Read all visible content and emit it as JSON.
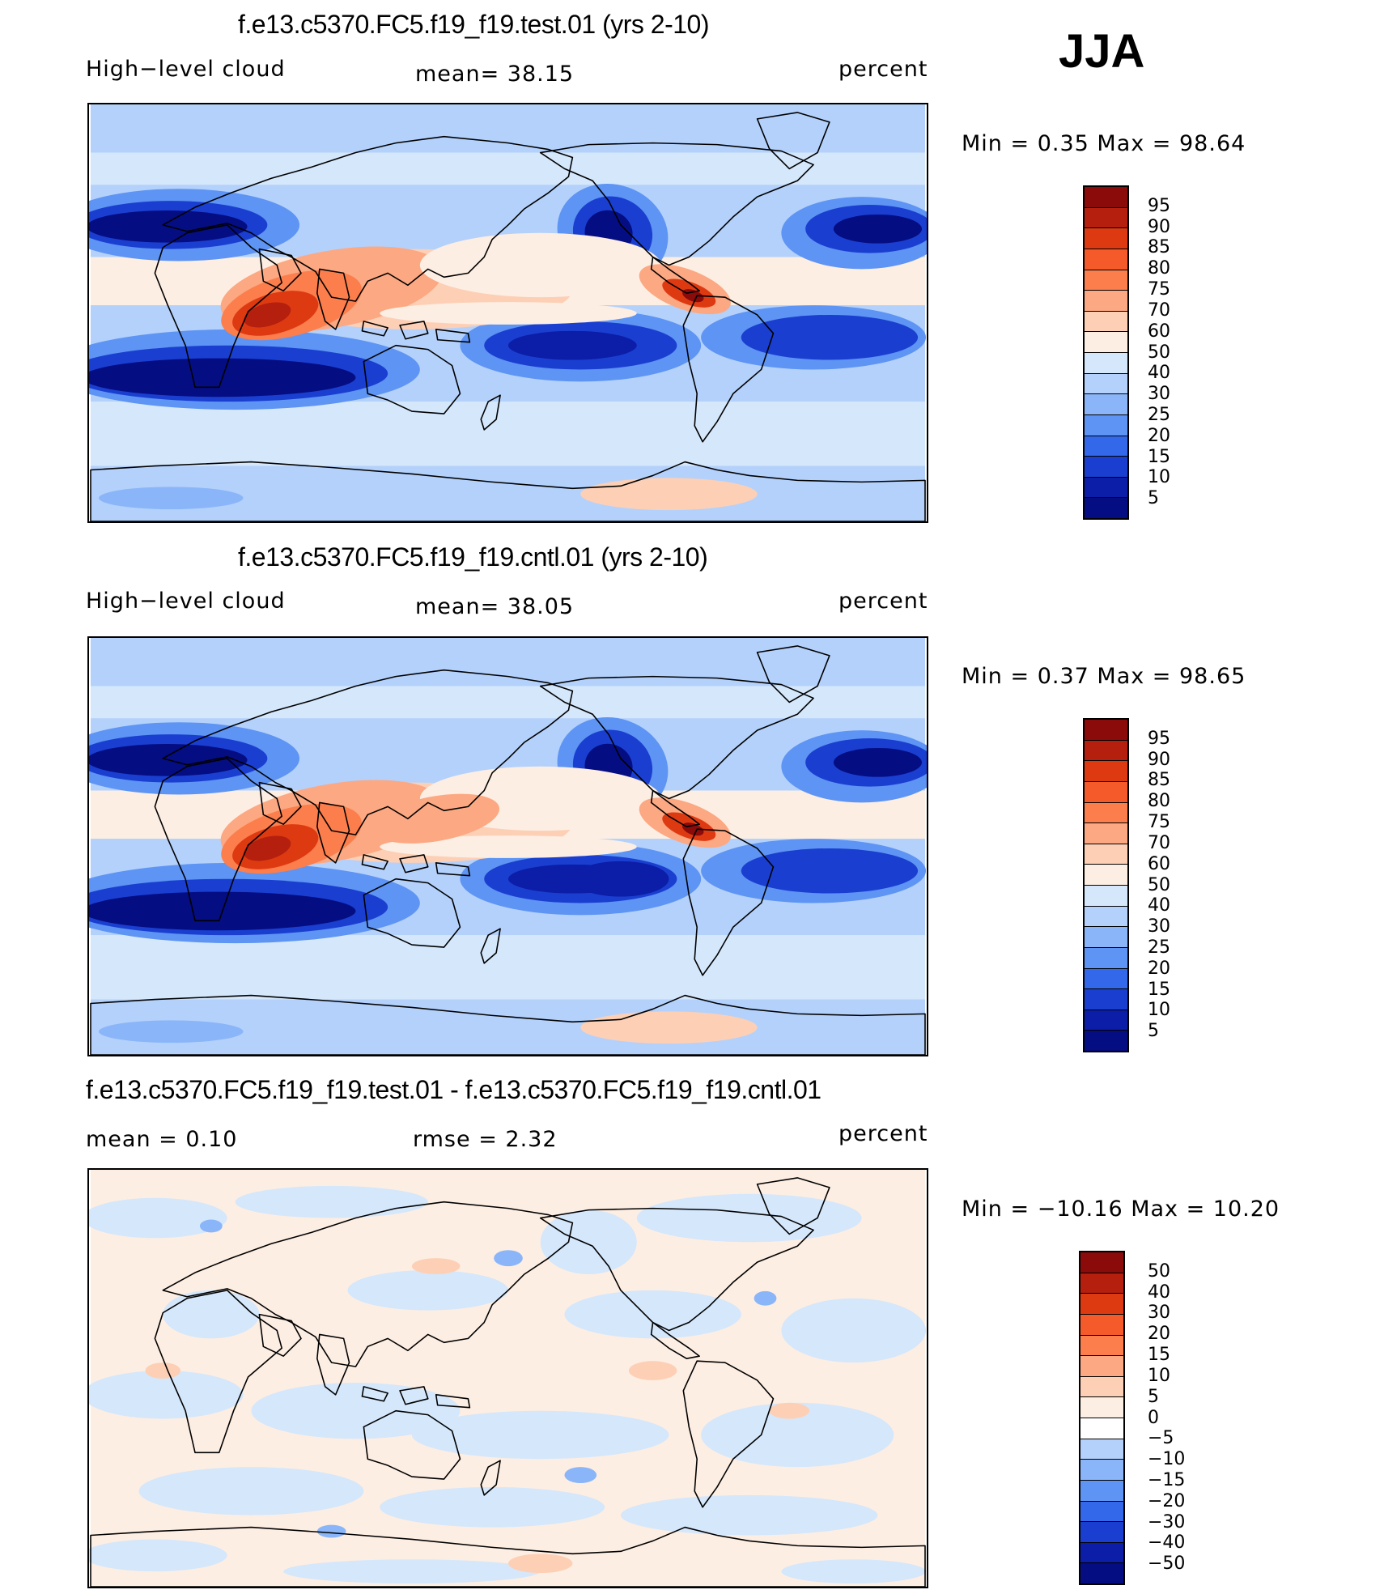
{
  "season": "JJA",
  "panels": [
    {
      "title": "f.e13.c5370.FC5.f19_f19.test.01 (yrs 2-10)",
      "left_label": "High−level cloud",
      "center_label": "mean=   38.15",
      "right_label": "percent",
      "minmax": "Min  =     0.35  Max  =    98.64",
      "palette": "abs"
    },
    {
      "title": "f.e13.c5370.FC5.f19_f19.cntl.01 (yrs 2-10)",
      "left_label": "High−level cloud",
      "center_label": "mean=   38.05",
      "right_label": "percent",
      "minmax": "Min  =     0.37  Max  =    98.65",
      "palette": "abs"
    },
    {
      "title": "f.e13.c5370.FC5.f19_f19.test.01 - f.e13.c5370.FC5.f19_f19.cntl.01",
      "left_label": "mean  =     0.10",
      "center_label": "rmse  =     2.32",
      "right_label": "percent",
      "minmax": "Min  = −10.16  Max  =    10.20",
      "palette": "diff"
    }
  ],
  "colorbars": {
    "abs": {
      "labels": [
        "95",
        "90",
        "85",
        "80",
        "75",
        "70",
        "60",
        "50",
        "40",
        "30",
        "25",
        "20",
        "15",
        "10",
        "5"
      ],
      "colors": [
        "#8b0b0b",
        "#b41f0e",
        "#de3a12",
        "#f55a2a",
        "#fb7e4c",
        "#fca882",
        "#fdd0b6",
        "#fdeee3",
        "#d5e7fb",
        "#b4d1fb",
        "#8ab6f9",
        "#5e94f3",
        "#3368ea",
        "#1a3fd0",
        "#0c1da7",
        "#050d82"
      ]
    },
    "diff": {
      "labels": [
        "50",
        "40",
        "30",
        "20",
        "15",
        "10",
        "5",
        "0",
        "−5",
        "−10",
        "−15",
        "−20",
        "−30",
        "−40",
        "−50"
      ],
      "colors": [
        "#8b0b0b",
        "#b41f0e",
        "#de3a12",
        "#f55a2a",
        "#fb7e4c",
        "#fca882",
        "#fdd0b6",
        "#fdeee3",
        "#ffffff",
        "#b4d1fb",
        "#8ab6f9",
        "#5e94f3",
        "#3368ea",
        "#1a3fd0",
        "#0c1da7",
        "#050d82"
      ]
    }
  }
}
